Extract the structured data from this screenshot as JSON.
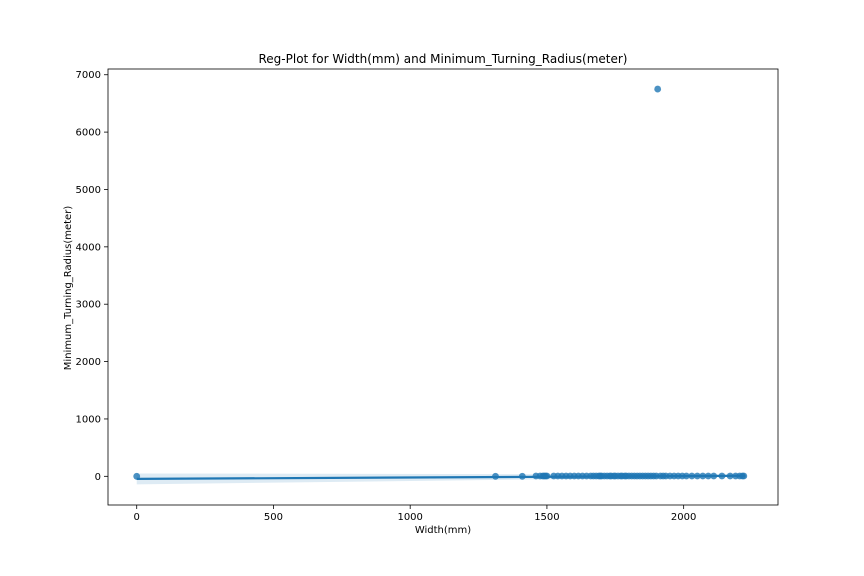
{
  "chart_data": {
    "type": "scatter",
    "title": "Reg-Plot for Width(mm) and Minimum_Turning_Radius(meter)",
    "xlabel": "Width(mm)",
    "ylabel": "Minimum_Turning_Radius(meter)",
    "xlim": [
      -105,
      2345
    ],
    "ylim": [
      -500,
      7100
    ],
    "xticks": [
      0,
      500,
      1000,
      1500,
      2000
    ],
    "yticks": [
      0,
      1000,
      2000,
      3000,
      4000,
      5000,
      6000,
      7000
    ],
    "grid": false,
    "color": "#1f77b4",
    "points": {
      "x": [
        0,
        1312,
        1410,
        1460,
        1475,
        1485,
        1490,
        1495,
        1500,
        1525,
        1540,
        1555,
        1570,
        1585,
        1600,
        1615,
        1630,
        1645,
        1660,
        1670,
        1680,
        1690,
        1695,
        1700,
        1710,
        1720,
        1730,
        1735,
        1745,
        1750,
        1760,
        1770,
        1775,
        1785,
        1790,
        1800,
        1810,
        1820,
        1830,
        1840,
        1850,
        1860,
        1870,
        1880,
        1890,
        1900,
        1905,
        1915,
        1925,
        1935,
        1950,
        1965,
        1980,
        1995,
        2010,
        2030,
        2050,
        2070,
        2090,
        2110,
        2140,
        2170,
        2190,
        2205,
        2215,
        2220
      ],
      "y": [
        0,
        0,
        0,
        5,
        6,
        5,
        6,
        5,
        6,
        5,
        5,
        6,
        5,
        6,
        5,
        6,
        5,
        6,
        5,
        6,
        5,
        6,
        5,
        6,
        5,
        6,
        5,
        6,
        5,
        6,
        5,
        6,
        5,
        6,
        5,
        6,
        5,
        6,
        5,
        6,
        5,
        6,
        5,
        6,
        5,
        6,
        6750,
        5,
        6,
        5,
        6,
        5,
        6,
        5,
        6,
        5,
        6,
        5,
        6,
        5,
        6,
        5,
        6,
        5,
        6,
        5
      ]
    },
    "regression": {
      "x": [
        0,
        2225
      ],
      "y": [
        -45,
        10
      ],
      "ci_lower": [
        -140,
        -10
      ],
      "ci_upper": [
        50,
        30
      ]
    }
  }
}
